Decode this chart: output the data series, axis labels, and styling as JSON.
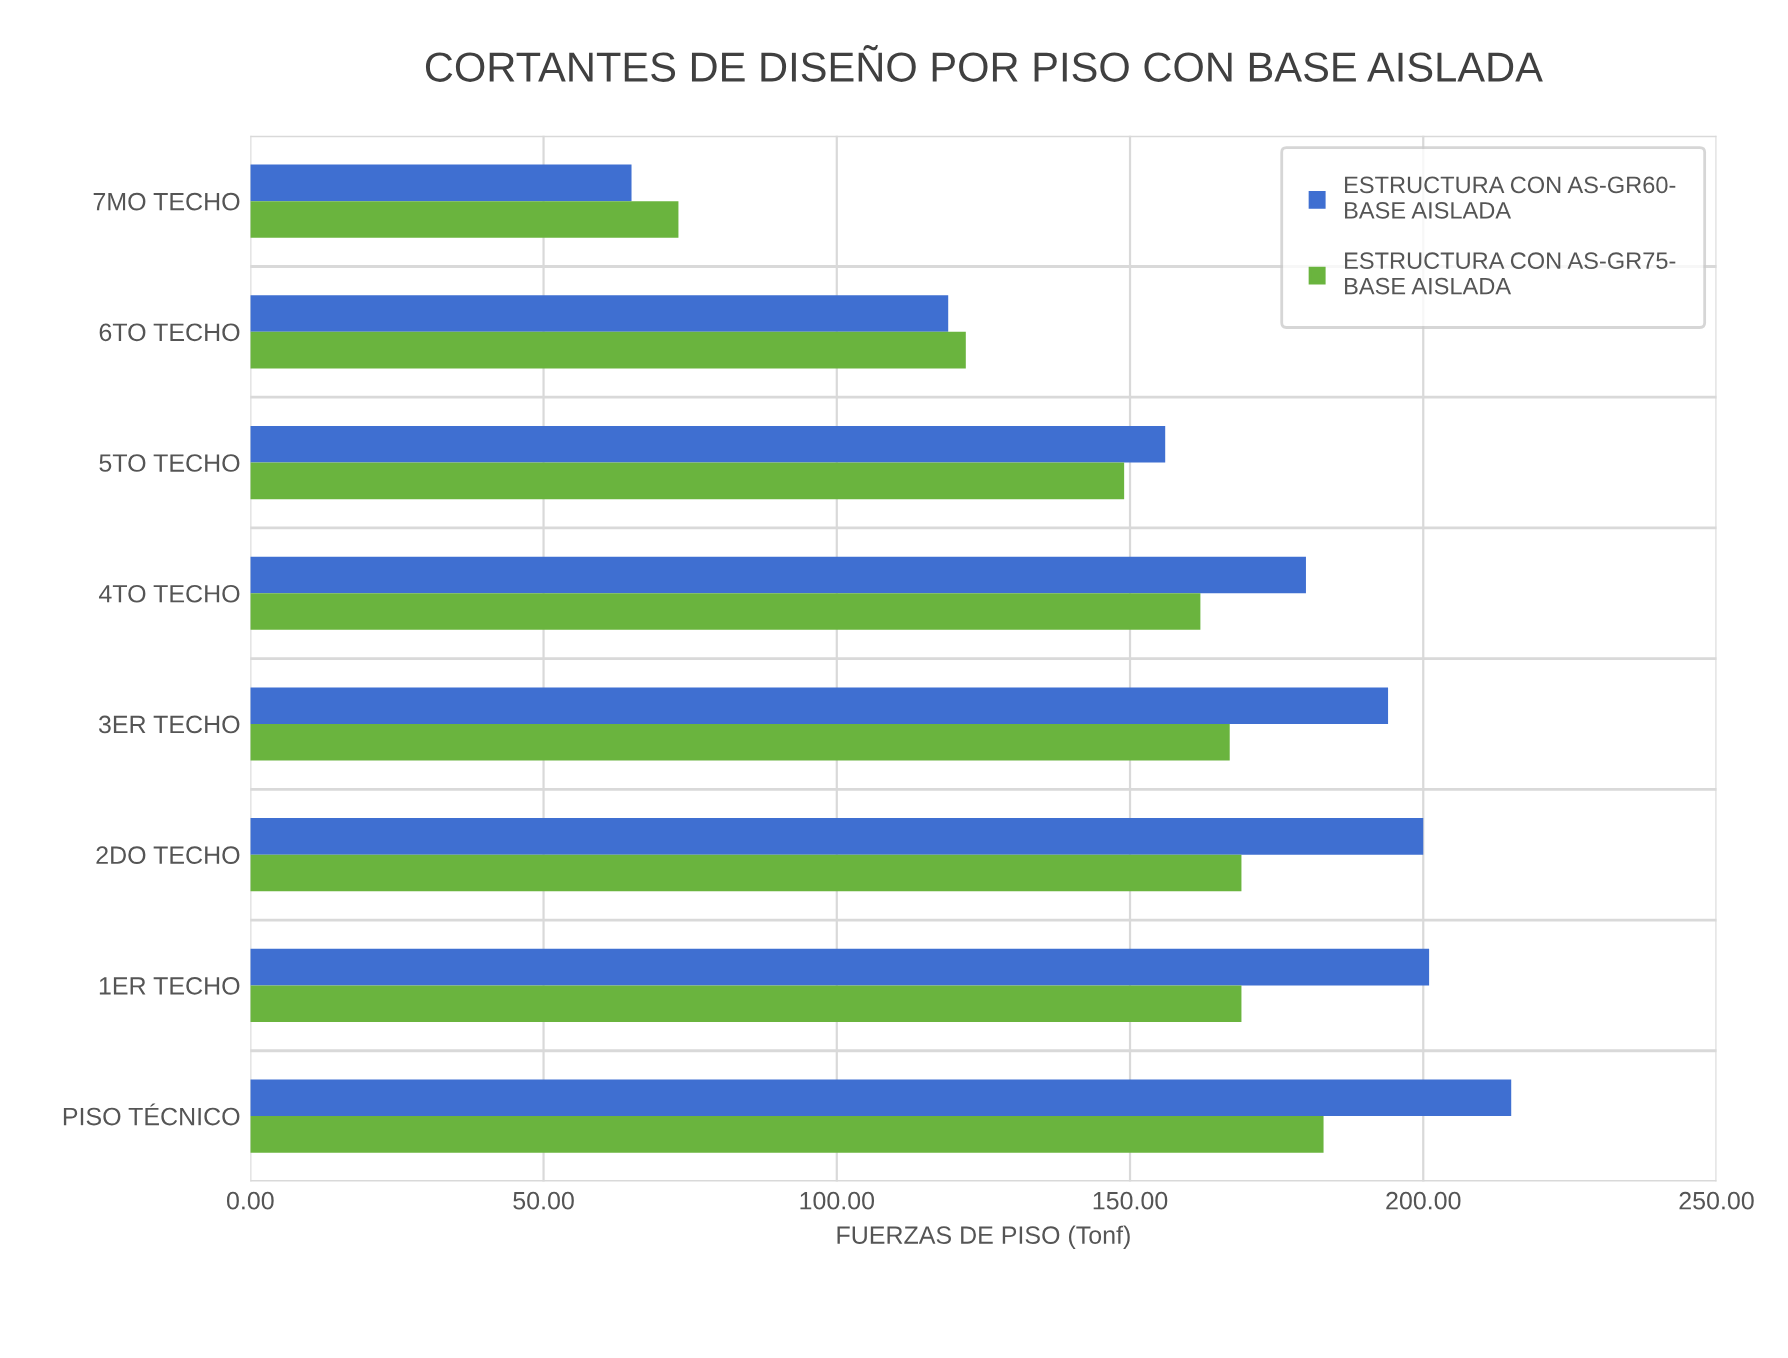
{
  "chart_data": {
    "type": "bar",
    "orientation": "horizontal",
    "title": "CORTANTES DE DISEÑO POR PISO CON BASE AISLADA",
    "xlabel": "FUERZAS DE PISO (Tonf)",
    "categories": [
      "7MO TECHO",
      "6TO TECHO",
      "5TO TECHO",
      "4TO TECHO",
      "3ER TECHO",
      "2DO TECHO",
      "1ER TECHO",
      "PISO TÉCNICO"
    ],
    "series": [
      {
        "name": "ESTRUCTURA CON AS-GR60-BASE AISLADA",
        "color": "#3f6fd1",
        "values": [
          65,
          119,
          156,
          180,
          194,
          200,
          201,
          215
        ]
      },
      {
        "name": "ESTRUCTURA CON AS-GR75-BASE AISLADA",
        "color": "#6ab43e",
        "values": [
          73,
          122,
          149,
          162,
          167,
          169,
          169,
          183
        ]
      }
    ],
    "xlim": [
      0,
      250
    ],
    "xticks": [
      {
        "value": 0,
        "label": "0.00"
      },
      {
        "value": 50,
        "label": "50.00"
      },
      {
        "value": 100,
        "label": "100.00"
      },
      {
        "value": 150,
        "label": "150.00"
      },
      {
        "value": 200,
        "label": "200.00"
      },
      {
        "value": 250,
        "label": "250.00"
      }
    ],
    "grid": "x",
    "legend": "top right"
  }
}
